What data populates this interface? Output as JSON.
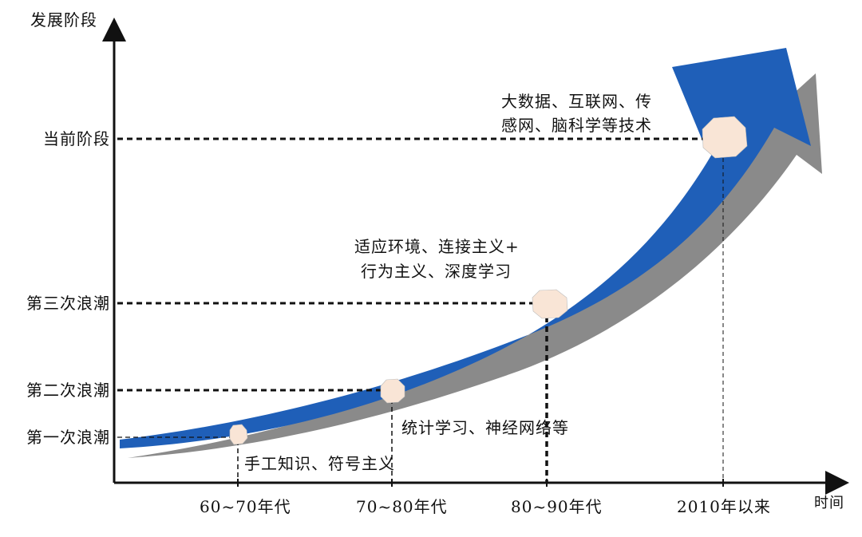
{
  "axes": {
    "y_title": "发展阶段",
    "x_title": "时间"
  },
  "stages": [
    {
      "label": "第一次浪潮",
      "period": "60~70年代",
      "tech": "手工知识、符号主义"
    },
    {
      "label": "第二次浪潮",
      "period": "70~80年代",
      "tech": "统计学习、神经网络等"
    },
    {
      "label": "第三次浪潮",
      "period": "80~90年代",
      "tech_lines": [
        "适应环境、连接主义+",
        "行为主义、深度学习"
      ]
    },
    {
      "label": "当前阶段",
      "period": "2010年以来",
      "tech_lines": [
        "大数据、互联网、传",
        "感网、脑科学等技术"
      ]
    }
  ],
  "colors": {
    "arrow_fill": "#1f5fb8",
    "arrow_shadow": "#8a8a8a",
    "node_fill": "#f9e5d6",
    "axis": "#111111"
  }
}
